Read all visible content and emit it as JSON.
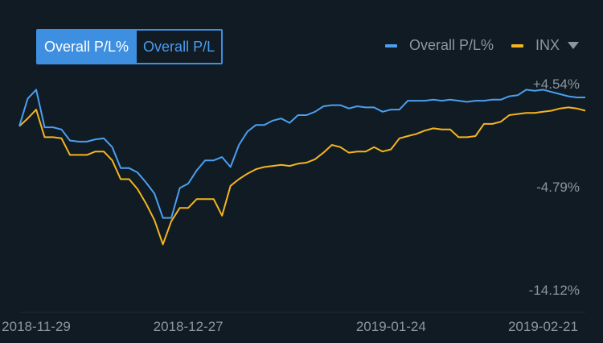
{
  "toggle": {
    "active_label": "Overall P/L%",
    "inactive_label": "Overall P/L"
  },
  "legend": {
    "series_1": "Overall P/L%",
    "series_2": "INX"
  },
  "colors": {
    "background": "#101b24",
    "series_1": "#4b9ff0",
    "series_2": "#f5b51f",
    "toggle_accent": "#3f8fe0",
    "axis_text": "#8d969e"
  },
  "icons": {
    "legend_dropdown": "chevron-down-icon"
  },
  "chart_data": {
    "type": "line",
    "ylim": [
      -14.12,
      4.54
    ],
    "y_ticks": [
      "+4.54%",
      "-4.79%",
      "-14.12%"
    ],
    "y_tick_values": [
      4.54,
      -4.79,
      -14.12
    ],
    "x_ticks": [
      "2018-11-29",
      "2018-12-27",
      "2019-01-24",
      "2019-02-21"
    ],
    "x_tick_index": [
      2,
      20,
      44,
      62
    ],
    "series": [
      {
        "name": "Overall P/L%",
        "values": [
          0.7,
          3.2,
          4.0,
          0.6,
          0.6,
          0.4,
          -0.6,
          -0.7,
          -0.7,
          -0.5,
          -0.4,
          -1.2,
          -3.1,
          -3.1,
          -3.5,
          -4.4,
          -5.4,
          -7.6,
          -7.6,
          -4.9,
          -4.5,
          -3.3,
          -2.4,
          -2.4,
          -2.1,
          -3.0,
          -1.0,
          0.2,
          0.8,
          0.8,
          1.2,
          1.4,
          1.0,
          1.7,
          1.7,
          2.0,
          2.5,
          2.6,
          2.6,
          2.3,
          2.5,
          2.4,
          2.4,
          2.0,
          2.2,
          2.2,
          3.0,
          3.0,
          3.0,
          3.1,
          3.0,
          3.1,
          3.0,
          2.9,
          3.0,
          3.0,
          3.1,
          3.1,
          3.4,
          3.5,
          4.0,
          3.9,
          4.0,
          3.8,
          3.6,
          3.4,
          3.3,
          3.3
        ],
        "color": "#4b9ff0"
      },
      {
        "name": "INX",
        "values": [
          0.7,
          1.4,
          2.2,
          -0.3,
          -0.3,
          -0.4,
          -1.9,
          -1.9,
          -1.9,
          -1.6,
          -1.6,
          -2.4,
          -4.1,
          -4.1,
          -5.0,
          -6.3,
          -7.8,
          -10.0,
          -7.9,
          -6.7,
          -6.7,
          -5.9,
          -5.9,
          -5.9,
          -7.4,
          -4.7,
          -4.1,
          -3.6,
          -3.2,
          -3.0,
          -2.9,
          -2.8,
          -2.9,
          -2.7,
          -2.6,
          -2.3,
          -1.7,
          -1.0,
          -1.2,
          -1.7,
          -1.6,
          -1.6,
          -1.2,
          -1.6,
          -1.4,
          -0.4,
          -0.2,
          0.0,
          0.3,
          0.5,
          0.4,
          0.4,
          -0.3,
          -0.3,
          -0.2,
          0.9,
          0.9,
          1.1,
          1.7,
          1.8,
          1.9,
          1.9,
          2.0,
          2.1,
          2.3,
          2.4,
          2.3,
          2.1
        ],
        "color": "#f5b51f"
      }
    ]
  }
}
